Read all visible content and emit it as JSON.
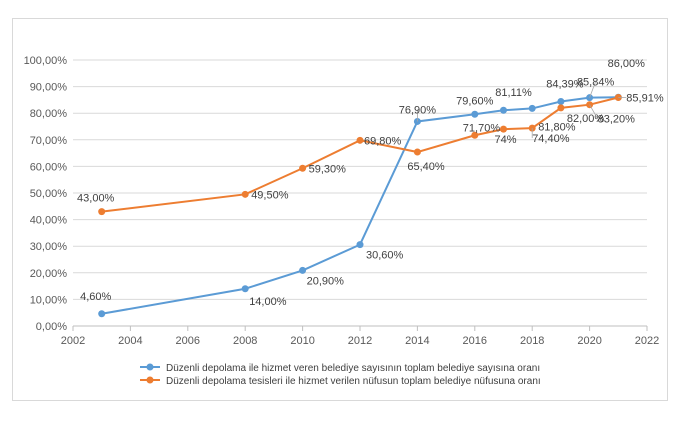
{
  "chart_data": {
    "type": "line",
    "title": "",
    "xlabel": "",
    "ylabel": "",
    "xlim": [
      2002,
      2022
    ],
    "ylim": [
      0,
      100
    ],
    "x_ticks": [
      "2002",
      "2004",
      "2006",
      "2008",
      "2010",
      "2012",
      "2014",
      "2016",
      "2018",
      "2020",
      "2022"
    ],
    "y_ticks": [
      "0,00%",
      "10,00%",
      "20,00%",
      "30,00%",
      "40,00%",
      "50,00%",
      "60,00%",
      "70,00%",
      "80,00%",
      "90,00%",
      "100,00%"
    ],
    "grid": "horizontal",
    "legend_position": "bottom",
    "series": [
      {
        "name": "Düzenli depolama ile hizmet veren belediye sayısının toplam belediye sayısına oranı",
        "color": "#5b9bd5",
        "x": [
          2003,
          2008,
          2010,
          2012,
          2014,
          2016,
          2017,
          2018,
          2019,
          2020,
          2021
        ],
        "y": [
          4.6,
          14.0,
          20.9,
          30.6,
          76.9,
          79.6,
          81.11,
          81.8,
          84.39,
          85.84,
          86.0
        ],
        "labels": [
          "4,60%",
          "14,00%",
          "20,90%",
          "30,60%",
          "76,90%",
          "79,60%",
          "81,11%",
          "81,80%",
          "84,39%",
          "85,84%",
          "86,00%"
        ]
      },
      {
        "name": "Düzenli depolama tesisleri ile hizmet verilen nüfusun toplam belediye nüfusuna oranı",
        "color": "#ed7d31",
        "x": [
          2003,
          2008,
          2010,
          2012,
          2014,
          2016,
          2017,
          2018,
          2019,
          2020,
          2021
        ],
        "y": [
          43.0,
          49.5,
          59.3,
          69.8,
          65.4,
          71.7,
          74.0,
          74.4,
          82.0,
          83.2,
          85.91
        ],
        "labels": [
          "43,00%",
          "49,50%",
          "59,30%",
          "69,80%",
          "65,40%",
          "71,70%",
          "74%",
          "74,40%",
          "82,00%",
          "83,20%",
          "85,91%"
        ]
      }
    ]
  }
}
